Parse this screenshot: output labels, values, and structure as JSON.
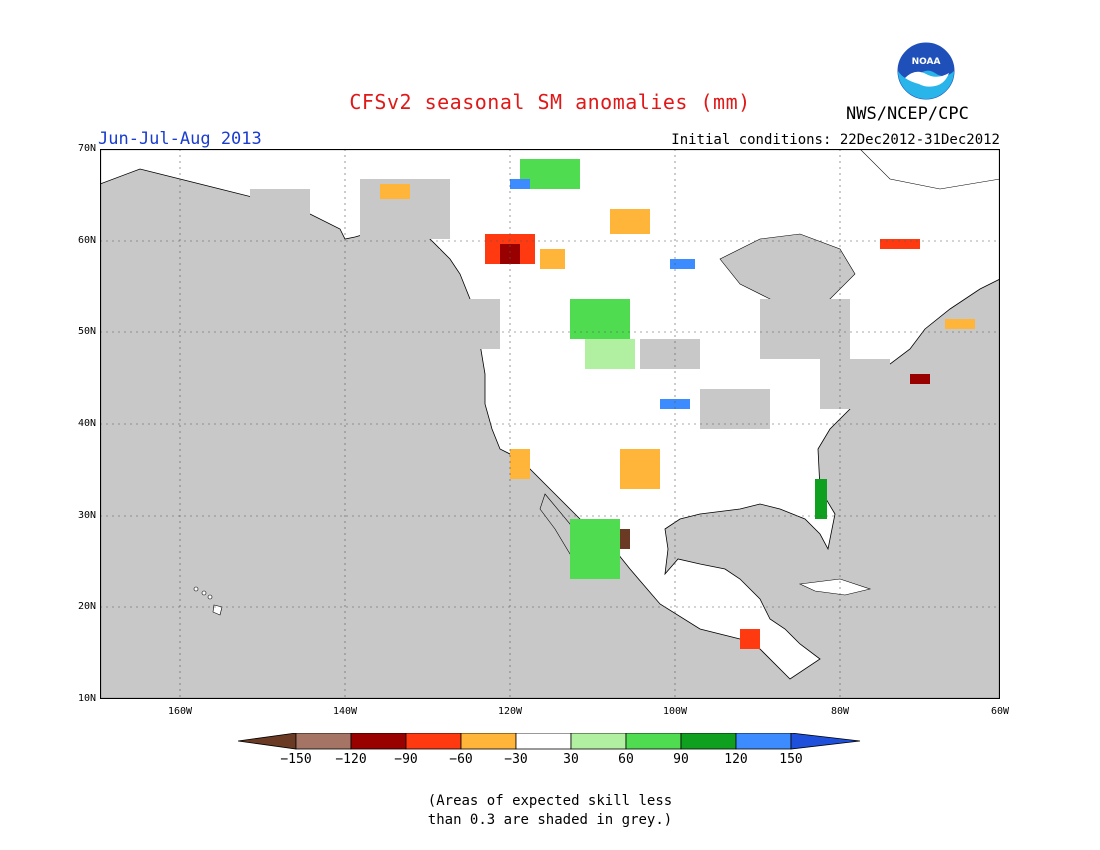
{
  "title": "CFSv2 seasonal SM anomalies (mm)",
  "period": "Jun-Jul-Aug 2013",
  "initial_conditions": "Initial conditions: 22Dec2012-31Dec2012",
  "agency": "NWS/NCEP/CPC",
  "logo_text": "NOAA",
  "map": {
    "lon_range": [
      -172,
      -60
    ],
    "lat_range": [
      10,
      70
    ],
    "lat_labels": [
      "70N",
      "60N",
      "50N",
      "40N",
      "30N",
      "20N",
      "10N"
    ],
    "lon_labels": [
      "160W",
      "140W",
      "120W",
      "100W",
      "80W",
      "60W"
    ],
    "ocean_color": "#c8c8c8",
    "land_color": "#ffffff",
    "gridlines": "dotted"
  },
  "colorbar": {
    "labels": [
      "−150",
      "−120",
      "−90",
      "−60",
      "−30",
      "30",
      "60",
      "90",
      "120",
      "150"
    ],
    "colors": [
      "#6b3a24",
      "#a57464",
      "#990000",
      "#ff3a10",
      "#ffb43a",
      "#ffffff",
      "#b0f0a0",
      "#50dc50",
      "#10a020",
      "#3c8cff",
      "#1e50dc"
    ]
  },
  "note": [
    "(Areas of expected skill less",
    "than 0.3 are shaded in grey.)"
  ]
}
